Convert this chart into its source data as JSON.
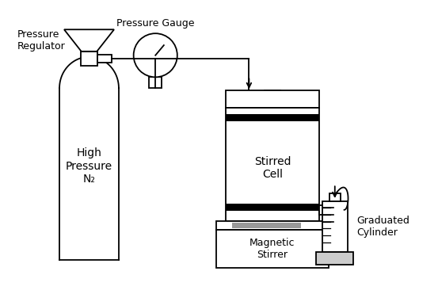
{
  "bg_color": "#ffffff",
  "line_color": "#000000",
  "gray_color": "#999999",
  "light_gray": "#cccccc",
  "labels": {
    "pressure_regulator": "Pressure\nRegulator",
    "pressure_gauge": "Pressure Gauge",
    "high_pressure_n2": "High\nPressure\nN₂",
    "stirred_cell": "Stirred\nCell",
    "magnetic_stirrer": "Magnetic\nStirrer",
    "graduated_cylinder": "Graduated\nCylinder"
  },
  "font_size": 9,
  "lw": 1.3
}
